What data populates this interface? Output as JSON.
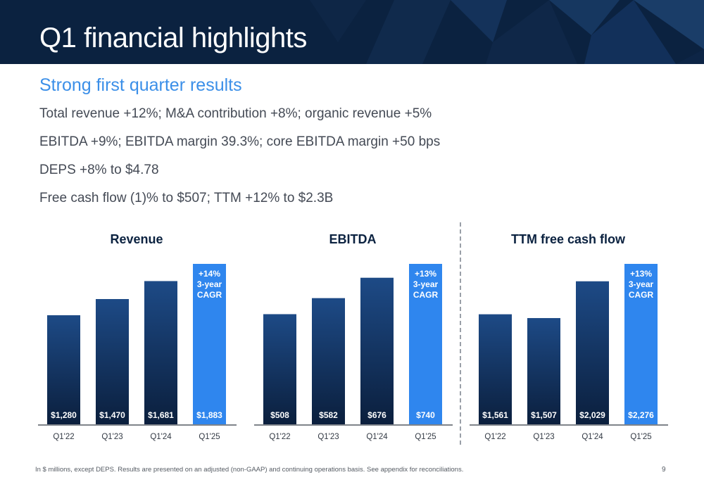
{
  "header": {
    "title": "Q1 financial highlights"
  },
  "subtitle": "Strong first quarter results",
  "bullets": [
    "Total revenue +12%; M&A contribution +8%; organic revenue +5%",
    "EBITDA +9%; EBITDA margin 39.3%; core EBITDA margin +50 bps",
    "DEPS +8% to $4.78",
    "Free cash flow (1)% to $507; TTM +12% to $2.3B"
  ],
  "footnote": "In $ millions, except DEPS. Results are presented on an adjusted (non-GAAP) and continuing operations basis. See appendix for reconciliations.",
  "page_number": "9",
  "colors": {
    "dark_bar": "#0e2a52",
    "highlight_bar": "#2f86ee",
    "header_bg": "#0b2240",
    "subtitle": "#3b8fe8"
  },
  "chart_data": [
    {
      "type": "bar",
      "title": "Revenue",
      "categories": [
        "Q1'22",
        "Q1'23",
        "Q1'24",
        "Q1'25"
      ],
      "values": [
        1280,
        1470,
        1681,
        1883
      ],
      "value_labels": [
        "$1,280",
        "$1,470",
        "$1,681",
        "$1,883"
      ],
      "highlight_index": 3,
      "annotation": [
        "+14%",
        "3-year",
        "CAGR"
      ],
      "ylim": [
        0,
        1883
      ]
    },
    {
      "type": "bar",
      "title": "EBITDA",
      "categories": [
        "Q1'22",
        "Q1'23",
        "Q1'24",
        "Q1'25"
      ],
      "values": [
        508,
        582,
        676,
        740
      ],
      "value_labels": [
        "$508",
        "$582",
        "$676",
        "$740"
      ],
      "highlight_index": 3,
      "annotation": [
        "+13%",
        "3-year",
        "CAGR"
      ],
      "ylim": [
        0,
        740
      ]
    },
    {
      "type": "bar",
      "title": "TTM free cash flow",
      "categories": [
        "Q1'22",
        "Q1'23",
        "Q1'24",
        "Q1'25"
      ],
      "values": [
        1561,
        1507,
        2029,
        2276
      ],
      "value_labels": [
        "$1,561",
        "$1,507",
        "$2,029",
        "$2,276"
      ],
      "highlight_index": 3,
      "annotation": [
        "+13%",
        "3-year",
        "CAGR"
      ],
      "ylim": [
        0,
        2276
      ]
    }
  ]
}
